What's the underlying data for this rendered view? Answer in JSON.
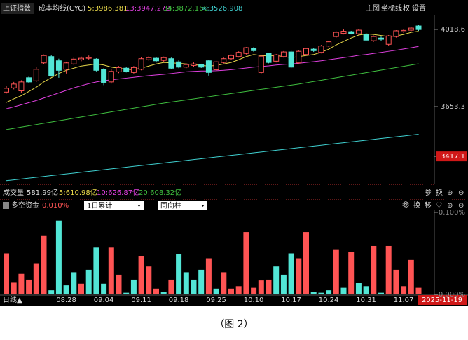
{
  "chart_data": [
    {
      "type": "candlestick",
      "title": "上证指数",
      "subtitle": "成本均线(CYC)",
      "open": [
        3722,
        3742,
        3728,
        3790,
        3775,
        3860,
        3890,
        3870,
        3830,
        3855,
        3875,
        3882,
        3878,
        3828,
        3770,
        3818,
        3835,
        3815,
        3830,
        3875,
        3882,
        3872,
        3880,
        3865,
        3840,
        3848,
        3852,
        3870,
        3828,
        3862,
        3880,
        3890,
        3905,
        3928,
        3815,
        3905,
        3868,
        3890,
        3912,
        3860,
        3900,
        3925,
        3910,
        3940,
        3985,
        4000,
        4008,
        3998,
        3995,
        3965,
        3978,
        3948,
        3985,
        4008,
        4015,
        4035
      ],
      "high": [
        3750,
        3770,
        3778,
        3795,
        3840,
        3900,
        3898,
        3880,
        3866,
        3885,
        3890,
        3895,
        3882,
        3835,
        3830,
        3845,
        3842,
        3845,
        3888,
        3892,
        3888,
        3890,
        3885,
        3872,
        3858,
        3862,
        3856,
        3875,
        3870,
        3885,
        3900,
        3915,
        3935,
        3935,
        3898,
        3908,
        3902,
        3916,
        3918,
        3920,
        3932,
        3930,
        3945,
        3965,
        4010,
        4018,
        4012,
        4020,
        4000,
        3990,
        3985,
        3992,
        4015,
        4020,
        4030,
        4040
      ],
      "low": [
        3715,
        3735,
        3720,
        3765,
        3770,
        3855,
        3795,
        3790,
        3810,
        3850,
        3868,
        3876,
        3820,
        3755,
        3762,
        3812,
        3815,
        3810,
        3825,
        3870,
        3862,
        3865,
        3830,
        3835,
        3835,
        3842,
        3836,
        3800,
        3822,
        3858,
        3875,
        3885,
        3900,
        3912,
        3810,
        3858,
        3862,
        3885,
        3835,
        3855,
        3895,
        3912,
        3905,
        3935,
        3980,
        3995,
        3995,
        3992,
        3962,
        3960,
        3965,
        3940,
        3980,
        4002,
        4010,
        4012
      ],
      "close": [
        3740,
        3760,
        3770,
        3770,
        3830,
        3895,
        3800,
        3825,
        3860,
        3878,
        3882,
        3886,
        3825,
        3768,
        3820,
        3838,
        3820,
        3838,
        3880,
        3885,
        3870,
        3885,
        3835,
        3840,
        3852,
        3855,
        3840,
        3815,
        3865,
        3880,
        3895,
        3910,
        3932,
        3918,
        3892,
        3862,
        3898,
        3912,
        3840,
        3915,
        3928,
        3918,
        3940,
        3960,
        4005,
        4010,
        4000,
        4015,
        3968,
        3985,
        3972,
        3988,
        4012,
        4014,
        4025,
        4018
      ],
      "up_color": "#ff5454",
      "down_color": "#52e6d6",
      "series": [
        {
          "name": "5:3986.381",
          "color": "#e8d84a",
          "values": [
            3673,
            3690,
            3705,
            3725,
            3745,
            3770,
            3790,
            3810,
            3825,
            3835,
            3845,
            3850,
            3855,
            3850,
            3840,
            3835,
            3830,
            3828,
            3835,
            3845,
            3855,
            3862,
            3860,
            3858,
            3855,
            3852,
            3848,
            3845,
            3848,
            3855,
            3862,
            3875,
            3890,
            3900,
            3895,
            3893,
            3895,
            3890,
            3885,
            3890,
            3895,
            3900,
            3910,
            3925,
            3945,
            3962,
            3978,
            3992,
            3998,
            3995,
            3990,
            3985,
            3988,
            3995,
            4005,
            4010
          ]
        },
        {
          "name": "13:3947.272",
          "color": "#e040e0",
          "values": [
            3643,
            3652,
            3662,
            3672,
            3682,
            3694,
            3706,
            3718,
            3730,
            3742,
            3752,
            3762,
            3770,
            3776,
            3780,
            3784,
            3788,
            3792,
            3796,
            3800,
            3803,
            3806,
            3810,
            3814,
            3818,
            3820,
            3822,
            3822,
            3823,
            3825,
            3828,
            3832,
            3836,
            3840,
            3843,
            3846,
            3850,
            3853,
            3855,
            3858,
            3862,
            3866,
            3870,
            3875,
            3880,
            3885,
            3890,
            3896,
            3900,
            3905,
            3910,
            3915,
            3920,
            3926,
            3932,
            3938
          ]
        },
        {
          "name": "34:3872.160",
          "color": "#3fbf3f",
          "values": [
            3544,
            3550,
            3556,
            3562,
            3568,
            3574,
            3580,
            3586,
            3592,
            3598,
            3604,
            3610,
            3616,
            3622,
            3628,
            3634,
            3640,
            3646,
            3652,
            3658,
            3664,
            3670,
            3675,
            3680,
            3685,
            3690,
            3695,
            3700,
            3705,
            3710,
            3715,
            3720,
            3725,
            3730,
            3735,
            3740,
            3745,
            3750,
            3755,
            3760,
            3766,
            3772,
            3778,
            3784,
            3790,
            3796,
            3802,
            3808,
            3814,
            3820,
            3826,
            3832,
            3838,
            3844,
            3850,
            3856
          ]
        },
        {
          "name": "∞:3526.908",
          "color": "#3fd0d0",
          "values": [
            3302,
            3306,
            3310,
            3314,
            3318,
            3322,
            3326,
            3330,
            3334,
            3338,
            3342,
            3346,
            3350,
            3354,
            3358,
            3362,
            3366,
            3370,
            3374,
            3378,
            3382,
            3386,
            3390,
            3394,
            3398,
            3402,
            3406,
            3410,
            3414,
            3418,
            3422,
            3426,
            3430,
            3434,
            3438,
            3442,
            3446,
            3450,
            3454,
            3458,
            3462,
            3466,
            3470,
            3474,
            3478,
            3482,
            3486,
            3490,
            3494,
            3498,
            3502,
            3506,
            3510,
            3514,
            3518,
            3522
          ]
        }
      ],
      "ylim": [
        3288,
        4085
      ],
      "yticks": [
        4018.6,
        3653.3,
        3417.1
      ]
    },
    {
      "type": "bar",
      "title": "多空资金",
      "subtitle": "0.010%",
      "categories": [
        null,
        null,
        null,
        null,
        null,
        null,
        null,
        null,
        "08.28",
        null,
        null,
        null,
        null,
        "09.04",
        null,
        null,
        null,
        null,
        "09.11",
        null,
        null,
        null,
        null,
        "09.18",
        null,
        null,
        null,
        null,
        "09.25",
        null,
        null,
        null,
        null,
        "10.10",
        null,
        null,
        null,
        null,
        "10.17",
        null,
        null,
        null,
        null,
        "10.24",
        null,
        null,
        null,
        null,
        "10.31",
        null,
        null,
        null,
        null,
        "11.07",
        null,
        null
      ],
      "values": [
        0.05,
        0.015,
        0.025,
        0.018,
        0.038,
        0.072,
        0.005,
        0.09,
        0.011,
        0.027,
        0.013,
        0.03,
        0.057,
        0.013,
        0.057,
        0.024,
        0.002,
        0.018,
        0.047,
        0.034,
        0.007,
        0.003,
        0.018,
        0.049,
        0.027,
        0.018,
        0.03,
        0.044,
        0.007,
        0.027,
        0.007,
        0.01,
        0.076,
        0.008,
        0.017,
        0.018,
        0.034,
        0.024,
        0.05,
        0.044,
        0.076,
        0.003,
        0.002,
        0.005,
        0.055,
        0.008,
        0.052,
        0.014,
        0.01,
        0.059,
        0.002,
        0.059,
        0.03,
        0.01,
        0.042,
        0.008
      ],
      "colors": [
        "#ff5454",
        "#ff5454",
        "#ff5454",
        "#ff5454",
        "#ff5454",
        "#ff5454",
        "#52e6d6",
        "#52e6d6",
        "#52e6d6",
        "#52e6d6",
        "#ff5454",
        "#52e6d6",
        "#52e6d6",
        "#52e6d6",
        "#ff5454",
        "#ff5454",
        "#52e6d6",
        "#52e6d6",
        "#ff5454",
        "#ff5454",
        "#ff5454",
        "#52e6d6",
        "#ff5454",
        "#52e6d6",
        "#52e6d6",
        "#52e6d6",
        "#52e6d6",
        "#ff5454",
        "#52e6d6",
        "#ff5454",
        "#ff5454",
        "#ff5454",
        "#ff5454",
        "#ff5454",
        "#ff5454",
        "#ff5454",
        "#52e6d6",
        "#52e6d6",
        "#52e6d6",
        "#ff5454",
        "#ff5454",
        "#52e6d6",
        "#52e6d6",
        "#52e6d6",
        "#ff5454",
        "#52e6d6",
        "#ff5454",
        "#52e6d6",
        "#52e6d6",
        "#ff5454",
        "#52e6d6",
        "#ff5454",
        "#ff5454",
        "#ff5454",
        "#ff5454",
        "#ff5454"
      ],
      "ylim": [
        0,
        0.1
      ],
      "yticks": [
        {
          "value": 0.1,
          "label": "0.100%"
        },
        {
          "value": 0,
          "label": "0.000%"
        }
      ]
    }
  ],
  "ui": {
    "header_tools": [
      "主图",
      "坐标线",
      "权",
      "设置"
    ],
    "volume": {
      "title": "成交量",
      "items": [
        "581.99亿",
        "5:610.98亿",
        "10:626.87亿",
        "20:608.32亿"
      ],
      "tools": [
        "参",
        "换",
        "⊕",
        "⊖"
      ]
    },
    "fund_dropdowns": [
      "1日累计",
      "同向柱"
    ],
    "fund_tools": [
      "参",
      "换",
      "移",
      "♡",
      "⊕",
      "⊖"
    ],
    "period": "日线▲",
    "cursor_date": "2025-11-19",
    "caption": "（图 2）"
  }
}
